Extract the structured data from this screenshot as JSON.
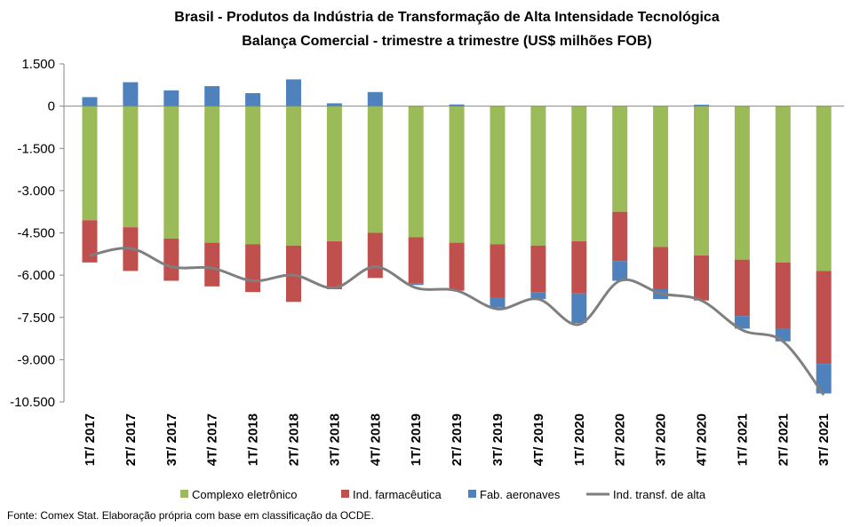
{
  "chart_data": {
    "type": "bar",
    "stacked": true,
    "title": "Brasil - Produtos da Indústria de Transformação  de Alta Intensidade Tecnológica",
    "subtitle": "Balança Comercial - trimestre a trimestre (US$ milhões FOB)",
    "categories": [
      "1T/ 2017",
      "2T/ 2017",
      "3T/ 2017",
      "4T/ 2017",
      "1T/ 2018",
      "2T/ 2018",
      "3T/ 2018",
      "4T/ 2018",
      "1T/ 2019",
      "2T/ 2019",
      "3T/ 2019",
      "4T/ 2019",
      "1T/ 2020",
      "2T/ 2020",
      "3T/ 2020",
      "4T/ 2020",
      "1T/ 2021",
      "2T/ 2021",
      "3T/ 2021"
    ],
    "ylim": [
      -10500,
      1500
    ],
    "yticks": [
      1500,
      0,
      -1500,
      -3000,
      -4500,
      -6000,
      -7500,
      -9000,
      -10500
    ],
    "ytick_labels": [
      "1.500",
      "0",
      "-1.500",
      "-3.000",
      "-4.500",
      "-6.000",
      "-7.500",
      "-9.000",
      "-10.500"
    ],
    "grid": false,
    "legend_position": "bottom",
    "series": [
      {
        "name": "Complexo eletrônico",
        "type": "bar",
        "color": "#9bbb59",
        "values": [
          -4050,
          -4300,
          -4700,
          -4850,
          -4900,
          -4950,
          -4800,
          -4500,
          -4650,
          -4850,
          -4900,
          -4950,
          -4800,
          -3750,
          -5000,
          -5300,
          -5450,
          -5550,
          -5850
        ]
      },
      {
        "name": "Ind. farmacêutica",
        "type": "bar",
        "color": "#c0504d",
        "values": [
          -1500,
          -1550,
          -1500,
          -1550,
          -1700,
          -2000,
          -1700,
          -1600,
          -1650,
          -1700,
          -1900,
          -1650,
          -1850,
          -1750,
          -1500,
          -1600,
          -2000,
          -2350,
          -3300
        ]
      },
      {
        "name": "Fab. aeronaves",
        "type": "bar",
        "color": "#4f81bd",
        "values": [
          320,
          850,
          560,
          710,
          460,
          950,
          100,
          500,
          -50,
          60,
          -350,
          -250,
          -1050,
          -700,
          -350,
          50,
          -450,
          -450,
          -1050
        ]
      },
      {
        "name": "Ind. transf. de alta",
        "type": "line",
        "color": "#7f7f7f",
        "values": [
          -5300,
          -5050,
          -5700,
          -5750,
          -6200,
          -6000,
          -6450,
          -5700,
          -6450,
          -6550,
          -7200,
          -6850,
          -7750,
          -6200,
          -6650,
          -6900,
          -7950,
          -8350,
          -10250
        ]
      }
    ]
  },
  "source_note": "Fonte: Comex Stat. Elaboração própria com base em classificação da OCDE."
}
